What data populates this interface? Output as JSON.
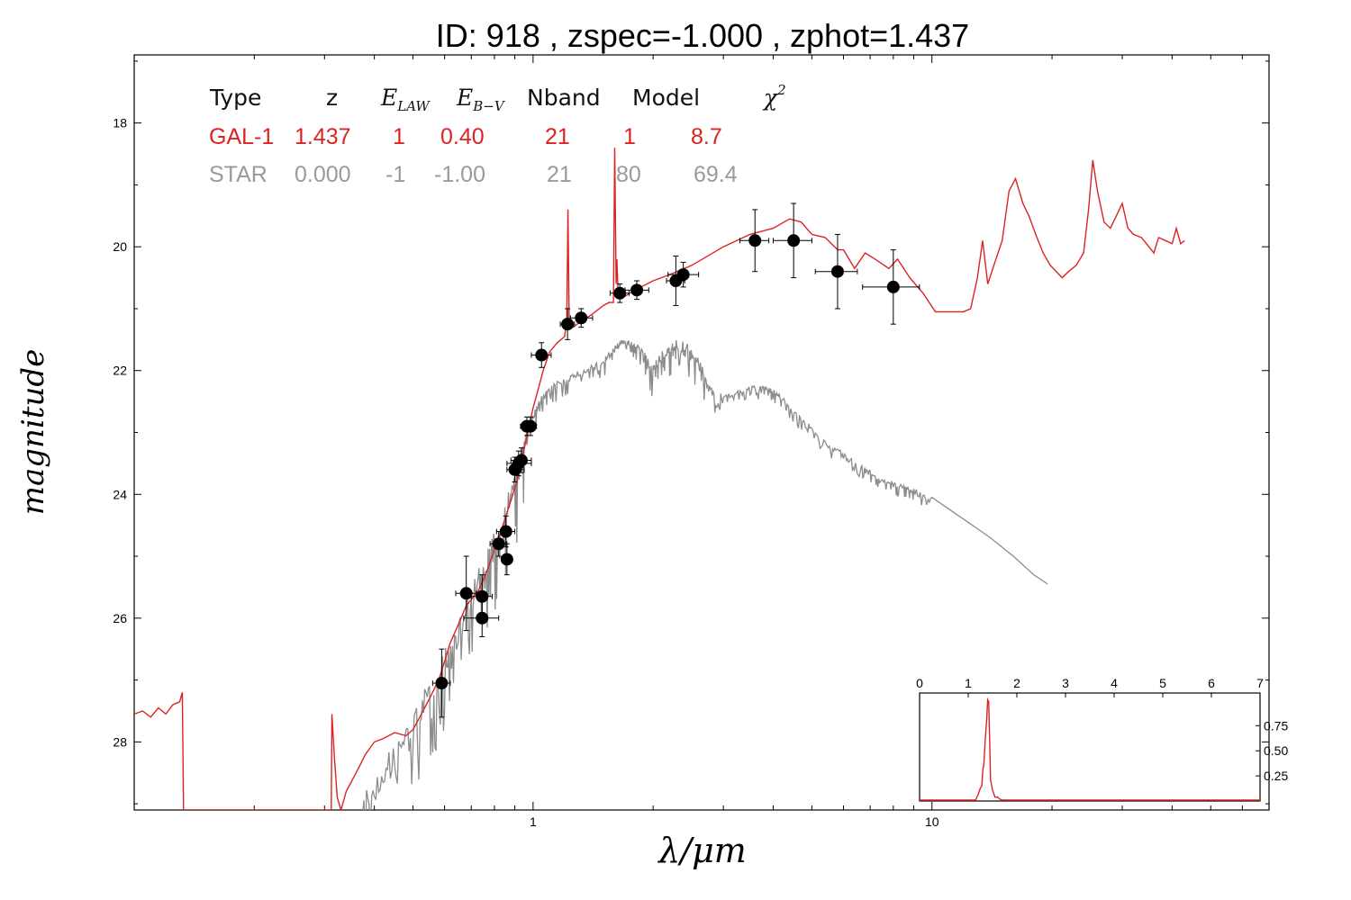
{
  "chart_data": {
    "type": "scatter",
    "title": "ID:  918   , zspec=-1.000 , zphot=1.437",
    "xlabel": "λ/μm",
    "ylabel": "magnitude",
    "x_scale": "log",
    "y_inverted": true,
    "xlim": [
      0.1,
      70
    ],
    "ylim": [
      29.1,
      16.9
    ],
    "x_ticks": [
      {
        "v": 1,
        "label": "1"
      },
      {
        "v": 10,
        "label": "10"
      }
    ],
    "y_ticks": [
      18,
      20,
      22,
      24,
      26,
      28
    ],
    "colors": {
      "galaxy": "#dd2222",
      "star": "#8c8c8c",
      "points": "#000000"
    },
    "table": {
      "headers": [
        "Type",
        "z",
        "E_LAW",
        "E_B−V",
        "Nband",
        "Model",
        "χ²"
      ],
      "rows": [
        {
          "color": "#dd2222",
          "cells": [
            "GAL-1",
            "1.437",
            "1",
            "0.40",
            "21",
            "1",
            "8.7"
          ]
        },
        {
          "color": "#9a9a9a",
          "cells": [
            "STAR",
            "0.000",
            "-1",
            "-1.00",
            "21",
            "80",
            "69.4"
          ]
        }
      ]
    },
    "points": [
      {
        "x": 0.59,
        "y": 27.05,
        "xerr": [
          0.56,
          0.62
        ],
        "yerr": [
          26.5,
          27.6
        ]
      },
      {
        "x": 0.68,
        "y": 25.6,
        "xerr": [
          0.64,
          0.72
        ],
        "yerr": [
          25.0,
          26.2
        ]
      },
      {
        "x": 0.745,
        "y": 25.65,
        "xerr": [
          0.7,
          0.79
        ],
        "yerr": [
          25.3,
          26.0
        ]
      },
      {
        "x": 0.745,
        "y": 26.0,
        "xerr": [
          0.67,
          0.82
        ],
        "yerr": [
          25.7,
          26.3
        ]
      },
      {
        "x": 0.82,
        "y": 24.8,
        "xerr": [
          0.78,
          0.86
        ],
        "yerr": [
          24.6,
          25.0
        ]
      },
      {
        "x": 0.855,
        "y": 24.6,
        "xerr": [
          0.81,
          0.9
        ],
        "yerr": [
          24.35,
          24.85
        ]
      },
      {
        "x": 0.86,
        "y": 25.05,
        "xerr": [
          0.84,
          0.88
        ],
        "yerr": [
          24.8,
          25.3
        ]
      },
      {
        "x": 0.9,
        "y": 23.6,
        "xerr": [
          0.86,
          0.95
        ],
        "yerr": [
          23.4,
          23.8
        ]
      },
      {
        "x": 0.92,
        "y": 23.5,
        "xerr": [
          0.86,
          0.99
        ],
        "yerr": [
          23.3,
          23.7
        ]
      },
      {
        "x": 0.935,
        "y": 23.45,
        "xerr": [
          0.88,
          0.99
        ],
        "yerr": [
          23.25,
          23.65
        ]
      },
      {
        "x": 0.965,
        "y": 22.9,
        "xerr": [
          0.93,
          1.0
        ],
        "yerr": [
          22.75,
          23.05
        ]
      },
      {
        "x": 0.985,
        "y": 22.9,
        "xerr": [
          0.95,
          1.02
        ],
        "yerr": [
          22.75,
          23.05
        ]
      },
      {
        "x": 1.05,
        "y": 21.75,
        "xerr": [
          0.99,
          1.11
        ],
        "yerr": [
          21.55,
          21.95
        ]
      },
      {
        "x": 1.22,
        "y": 21.25,
        "xerr": [
          1.17,
          1.27
        ],
        "yerr": [
          21.0,
          21.5
        ]
      },
      {
        "x": 1.32,
        "y": 21.15,
        "xerr": [
          1.24,
          1.41
        ],
        "yerr": [
          21.0,
          21.3
        ]
      },
      {
        "x": 1.65,
        "y": 20.75,
        "xerr": [
          1.56,
          1.74
        ],
        "yerr": [
          20.6,
          20.9
        ]
      },
      {
        "x": 1.82,
        "y": 20.7,
        "xerr": [
          1.7,
          1.95
        ],
        "yerr": [
          20.55,
          20.85
        ]
      },
      {
        "x": 2.28,
        "y": 20.55,
        "xerr": [
          2.16,
          2.4
        ],
        "yerr": [
          20.15,
          20.95
        ]
      },
      {
        "x": 2.38,
        "y": 20.45,
        "xerr": [
          2.18,
          2.6
        ],
        "yerr": [
          20.25,
          20.65
        ]
      },
      {
        "x": 3.6,
        "y": 19.9,
        "xerr": [
          3.3,
          3.9
        ],
        "yerr": [
          19.4,
          20.4
        ]
      },
      {
        "x": 4.5,
        "y": 19.9,
        "xerr": [
          4.0,
          5.0
        ],
        "yerr": [
          19.3,
          20.5
        ]
      },
      {
        "x": 5.8,
        "y": 20.4,
        "xerr": [
          5.1,
          6.5
        ],
        "yerr": [
          19.8,
          21.0
        ]
      },
      {
        "x": 8.0,
        "y": 20.65,
        "xerr": [
          6.7,
          9.3
        ],
        "yerr": [
          20.05,
          21.25
        ]
      }
    ],
    "galaxy_model": [
      [
        0.1,
        27.55
      ],
      [
        0.105,
        27.5
      ],
      [
        0.11,
        27.6
      ],
      [
        0.115,
        27.45
      ],
      [
        0.12,
        27.55
      ],
      [
        0.125,
        27.4
      ],
      [
        0.13,
        27.35
      ],
      [
        0.132,
        27.2
      ],
      [
        0.133,
        29.1
      ],
      [
        0.312,
        29.1
      ],
      [
        0.313,
        27.55
      ],
      [
        0.318,
        28.3
      ],
      [
        0.323,
        28.9
      ],
      [
        0.33,
        29.1
      ],
      [
        0.34,
        28.8
      ],
      [
        0.36,
        28.5
      ],
      [
        0.38,
        28.2
      ],
      [
        0.4,
        28.0
      ],
      [
        0.42,
        27.95
      ],
      [
        0.45,
        27.85
      ],
      [
        0.48,
        27.9
      ],
      [
        0.5,
        27.8
      ],
      [
        0.52,
        27.6
      ],
      [
        0.55,
        27.3
      ],
      [
        0.58,
        27.0
      ],
      [
        0.6,
        26.7
      ],
      [
        0.62,
        26.4
      ],
      [
        0.65,
        26.1
      ],
      [
        0.68,
        25.8
      ],
      [
        0.7,
        25.7
      ],
      [
        0.73,
        25.55
      ],
      [
        0.76,
        25.3
      ],
      [
        0.79,
        25.0
      ],
      [
        0.82,
        24.7
      ],
      [
        0.85,
        24.4
      ],
      [
        0.88,
        24.1
      ],
      [
        0.91,
        23.8
      ],
      [
        0.94,
        23.4
      ],
      [
        0.97,
        23.0
      ],
      [
        1.0,
        22.6
      ],
      [
        1.03,
        22.3
      ],
      [
        1.06,
        22.0
      ],
      [
        1.1,
        21.7
      ],
      [
        1.15,
        21.55
      ],
      [
        1.2,
        21.45
      ],
      [
        1.215,
        21.2
      ],
      [
        1.223,
        19.4
      ],
      [
        1.232,
        21.3
      ],
      [
        1.26,
        21.3
      ],
      [
        1.32,
        21.2
      ],
      [
        1.4,
        21.1
      ],
      [
        1.5,
        20.95
      ],
      [
        1.55,
        20.9
      ],
      [
        1.59,
        20.9
      ],
      [
        1.602,
        18.4
      ],
      [
        1.615,
        20.6
      ],
      [
        1.622,
        20.2
      ],
      [
        1.635,
        20.8
      ],
      [
        1.7,
        20.8
      ],
      [
        1.8,
        20.7
      ],
      [
        2.0,
        20.55
      ],
      [
        2.2,
        20.45
      ],
      [
        2.5,
        20.3
      ],
      [
        3.0,
        20.0
      ],
      [
        3.5,
        19.8
      ],
      [
        4.0,
        19.7
      ],
      [
        4.4,
        19.55
      ],
      [
        4.7,
        19.6
      ],
      [
        5.0,
        19.8
      ],
      [
        5.4,
        19.85
      ],
      [
        5.8,
        20.05
      ],
      [
        6.0,
        20.05
      ],
      [
        6.4,
        20.35
      ],
      [
        6.8,
        20.1
      ],
      [
        7.2,
        20.2
      ],
      [
        7.8,
        20.35
      ],
      [
        8.2,
        20.2
      ],
      [
        8.8,
        20.5
      ],
      [
        9.5,
        20.75
      ],
      [
        10.2,
        21.05
      ],
      [
        11.0,
        21.05
      ],
      [
        12.0,
        21.05
      ],
      [
        12.5,
        21.0
      ],
      [
        13.0,
        20.5
      ],
      [
        13.4,
        19.9
      ],
      [
        13.8,
        20.6
      ],
      [
        14.3,
        20.3
      ],
      [
        15.0,
        19.9
      ],
      [
        15.6,
        19.1
      ],
      [
        16.2,
        18.9
      ],
      [
        16.9,
        19.3
      ],
      [
        17.5,
        19.5
      ],
      [
        18.2,
        19.8
      ],
      [
        19.0,
        20.1
      ],
      [
        19.8,
        20.3
      ],
      [
        20.5,
        20.4
      ],
      [
        21.2,
        20.5
      ],
      [
        22.0,
        20.4
      ],
      [
        23.0,
        20.3
      ],
      [
        24.0,
        20.1
      ],
      [
        24.7,
        19.4
      ],
      [
        25.3,
        18.6
      ],
      [
        26.0,
        19.1
      ],
      [
        27.0,
        19.6
      ],
      [
        28.0,
        19.7
      ],
      [
        29.0,
        19.5
      ],
      [
        30.0,
        19.3
      ],
      [
        31.0,
        19.7
      ],
      [
        32.0,
        19.8
      ],
      [
        33.5,
        19.85
      ],
      [
        35.0,
        20.0
      ],
      [
        36.0,
        20.1
      ],
      [
        37.0,
        19.85
      ],
      [
        38.5,
        19.9
      ],
      [
        40.0,
        19.95
      ],
      [
        41.0,
        19.7
      ],
      [
        42.0,
        19.95
      ],
      [
        43.0,
        19.9
      ]
    ],
    "star_model": [
      [
        0.36,
        29.1
      ],
      [
        0.4,
        28.5
      ],
      [
        0.45,
        28.0
      ],
      [
        0.5,
        27.5
      ],
      [
        0.55,
        27.0
      ],
      [
        0.6,
        26.5
      ],
      [
        0.65,
        26.0
      ],
      [
        0.7,
        25.5
      ],
      [
        0.75,
        25.0
      ],
      [
        0.8,
        24.6
      ],
      [
        0.85,
        24.1
      ],
      [
        0.9,
        23.6
      ],
      [
        0.95,
        23.1
      ],
      [
        1.0,
        22.7
      ],
      [
        1.05,
        22.4
      ],
      [
        1.1,
        22.25
      ],
      [
        1.2,
        22.1
      ],
      [
        1.3,
        22.0
      ],
      [
        1.4,
        21.9
      ],
      [
        1.5,
        21.8
      ],
      [
        1.6,
        21.6
      ],
      [
        1.7,
        21.45
      ],
      [
        1.8,
        21.5
      ],
      [
        1.9,
        21.7
      ],
      [
        2.0,
        21.9
      ],
      [
        2.1,
        21.7
      ],
      [
        2.2,
        21.55
      ],
      [
        2.3,
        21.5
      ],
      [
        2.45,
        21.55
      ],
      [
        2.6,
        21.8
      ],
      [
        2.8,
        22.2
      ],
      [
        3.0,
        22.4
      ],
      [
        3.2,
        22.35
      ],
      [
        3.5,
        22.25
      ],
      [
        3.8,
        22.25
      ],
      [
        4.0,
        22.3
      ],
      [
        4.2,
        22.4
      ],
      [
        4.6,
        22.7
      ],
      [
        5.0,
        22.9
      ],
      [
        5.5,
        23.2
      ],
      [
        6.0,
        23.3
      ],
      [
        6.5,
        23.5
      ],
      [
        7.0,
        23.6
      ],
      [
        7.5,
        23.75
      ],
      [
        8.0,
        23.8
      ],
      [
        8.5,
        23.85
      ],
      [
        9.0,
        23.9
      ],
      [
        10.0,
        24.05
      ],
      [
        12.0,
        24.4
      ],
      [
        14.0,
        24.7
      ],
      [
        16.0,
        25.0
      ],
      [
        18.0,
        25.3
      ],
      [
        19.5,
        25.45
      ]
    ],
    "inset": {
      "xlim": [
        0,
        7
      ],
      "ylim": [
        0,
        1
      ],
      "x_ticks": [
        0,
        1,
        2,
        3,
        4,
        5,
        6,
        7
      ],
      "y_ticks": [
        0.25,
        0.5,
        0.75
      ],
      "pdf": [
        [
          0.0,
          0.0
        ],
        [
          1.0,
          0.0
        ],
        [
          1.15,
          0.0
        ],
        [
          1.2,
          0.05
        ],
        [
          1.25,
          0.12
        ],
        [
          1.28,
          0.14
        ],
        [
          1.3,
          0.3
        ],
        [
          1.32,
          0.35
        ],
        [
          1.35,
          0.6
        ],
        [
          1.38,
          0.8
        ],
        [
          1.4,
          1.0
        ],
        [
          1.42,
          0.98
        ],
        [
          1.44,
          0.6
        ],
        [
          1.46,
          0.2
        ],
        [
          1.5,
          0.1
        ],
        [
          1.55,
          0.03
        ],
        [
          1.6,
          0.03
        ],
        [
          1.65,
          0.01
        ],
        [
          1.7,
          0.0
        ],
        [
          7.0,
          0.0
        ]
      ]
    }
  }
}
